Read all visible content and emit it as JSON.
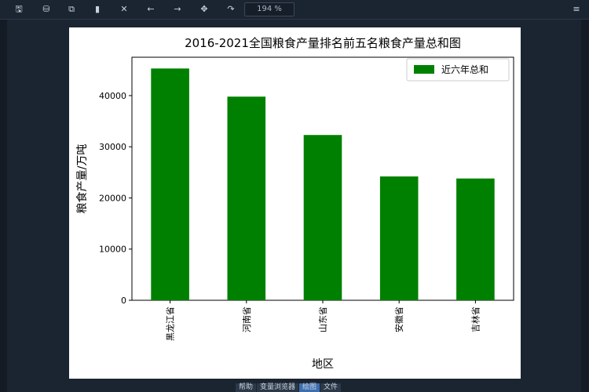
{
  "toolbar": {
    "buttons": [
      {
        "icon": "save-icon",
        "glyph": "🖫"
      },
      {
        "icon": "save-as-icon",
        "glyph": "⛁"
      },
      {
        "icon": "copy-icon",
        "glyph": "⧉"
      },
      {
        "icon": "delete-icon",
        "glyph": "▮"
      },
      {
        "icon": "cross-icon",
        "glyph": "✕"
      },
      {
        "icon": "back-icon",
        "glyph": "←"
      },
      {
        "icon": "forward-icon",
        "glyph": "→"
      },
      {
        "icon": "pan-icon",
        "glyph": "✥"
      },
      {
        "icon": "curve-icon",
        "glyph": "↷"
      }
    ],
    "zoom": "194 %",
    "menu_icon": "hamburger-menu-icon",
    "menu_glyph": "≡"
  },
  "statusbar": {
    "tabs": [
      "帮助",
      "变量浏览器",
      "绘图",
      "文件"
    ],
    "active": 2
  },
  "colors": {
    "bar": "#008000",
    "background": "#1b2431"
  },
  "chart_data": {
    "type": "bar",
    "title": "2016-2021全国粮食产量排名前五名粮食产量总和图",
    "xlabel": "地区",
    "ylabel": "粮食产量/万吨",
    "categories": [
      "黑龙江省",
      "河南省",
      "山东省",
      "安徽省",
      "吉林省"
    ],
    "series": [
      {
        "name": "近六年总和",
        "values": [
          45300,
          39800,
          32300,
          24200,
          23800
        ],
        "color": "#008000"
      }
    ],
    "ylim": [
      0,
      47500
    ],
    "yticks": [
      0,
      10000,
      20000,
      30000,
      40000
    ],
    "grid": false,
    "legend": "top-right"
  }
}
